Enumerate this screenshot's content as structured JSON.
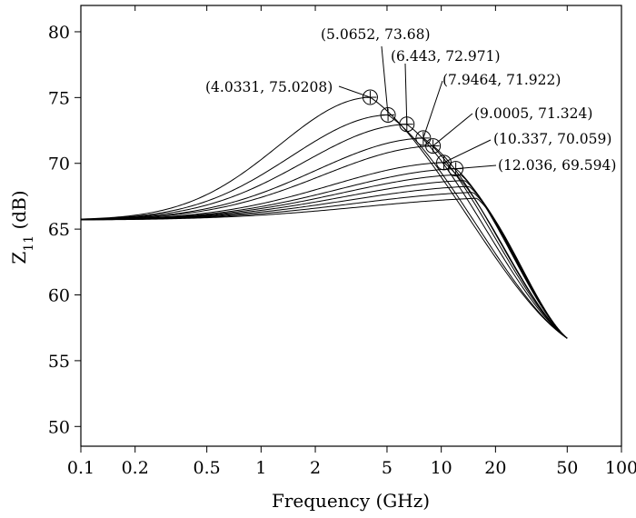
{
  "chart_data": {
    "type": "line",
    "title": "",
    "xlabel": "Frequency (GHz)",
    "ylabel": "Z11 (dB)",
    "ylabel_parts": {
      "main": "Z",
      "sub": "11",
      "suffix": " (dB)"
    },
    "x_scale": "log",
    "xlim": [
      0.1,
      100
    ],
    "ylim": [
      48.5,
      82
    ],
    "x_ticks": [
      0.1,
      0.2,
      0.5,
      1,
      2,
      5,
      10,
      20,
      50,
      100
    ],
    "x_tick_labels": [
      "0.1",
      "0.2",
      "0.5",
      "1",
      "2",
      "5",
      "10",
      "20",
      "50",
      "100"
    ],
    "y_ticks": [
      50,
      55,
      60,
      65,
      70,
      75,
      80
    ],
    "y_tick_labels": [
      "50",
      "55",
      "60",
      "65",
      "70",
      "75",
      "80"
    ],
    "grid": false,
    "legend": "none",
    "curve_count": 12,
    "low_frequency_level": 65.7,
    "endpoint": {
      "x": 50,
      "y": 56.7
    },
    "peaks": [
      {
        "x": 4.0331,
        "y": 75.0208
      },
      {
        "x": 5.0652,
        "y": 73.68
      },
      {
        "x": 6.443,
        "y": 72.971
      },
      {
        "x": 7.9464,
        "y": 71.922
      },
      {
        "x": 9.0005,
        "y": 71.324
      },
      {
        "x": 10.337,
        "y": 70.059
      },
      {
        "x": 12.036,
        "y": 69.594
      }
    ],
    "annotations": [
      {
        "text": "(4.0331, 75.0208)",
        "x": 4.0331,
        "y": 75.0208
      },
      {
        "text": "(5.0652, 73.68)",
        "x": 5.0652,
        "y": 73.68
      },
      {
        "text": "(6.443, 72.971)",
        "x": 6.443,
        "y": 72.971
      },
      {
        "text": "(7.9464, 71.922)",
        "x": 7.9464,
        "y": 71.922
      },
      {
        "text": "(9.0005, 71.324)",
        "x": 9.0005,
        "y": 71.324
      },
      {
        "text": "(10.337, 70.059)",
        "x": 10.337,
        "y": 70.059
      },
      {
        "text": "(12.036, 69.594)",
        "x": 12.036,
        "y": 69.594
      }
    ]
  }
}
